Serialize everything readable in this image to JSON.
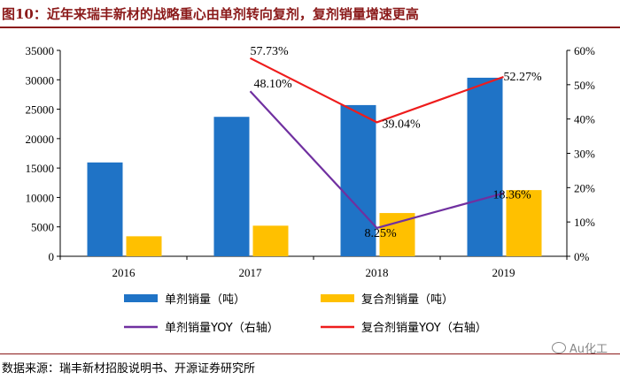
{
  "header": {
    "title": "图10：近年来瑞丰新材的战略重心由单剂转向复剂，复剂销量增速更高"
  },
  "footer": {
    "source": "数据来源：瑞丰新材招股说明书、开源证券研究所",
    "watermark": "Au化工"
  },
  "colors": {
    "single_bar": "#1f73c6",
    "compound_bar": "#ffc000",
    "single_yoy": "#7030a0",
    "compound_yoy": "#ee1c1c"
  },
  "chart_data": {
    "type": "bar",
    "categories": [
      "2016",
      "2017",
      "2018",
      "2019"
    ],
    "series": [
      {
        "name": "单剂销量（吨）",
        "kind": "bar",
        "axis": "left",
        "values": [
          15950,
          23700,
          25700,
          30350
        ]
      },
      {
        "name": "复合剂销量（吨）",
        "kind": "bar",
        "axis": "left",
        "values": [
          3400,
          5200,
          7350,
          11250
        ]
      },
      {
        "name": "单剂销量YOY（右轴）",
        "kind": "line",
        "axis": "right",
        "values": [
          null,
          48.1,
          8.25,
          18.36
        ],
        "labels": [
          "",
          "48.10%",
          "8.25%",
          "18.36%"
        ]
      },
      {
        "name": "复合剂销量YOY（右轴）",
        "kind": "line",
        "axis": "right",
        "values": [
          null,
          57.73,
          39.04,
          52.27
        ],
        "labels": [
          "",
          "57.73%",
          "39.04%",
          "52.27%"
        ]
      }
    ],
    "y_left": {
      "min": 0,
      "max": 35000,
      "ticks": [
        "0",
        "5000",
        "10000",
        "15000",
        "20000",
        "25000",
        "30000",
        "35000"
      ]
    },
    "y_right": {
      "min": 0,
      "max": 60,
      "ticks": [
        "0%",
        "10%",
        "20%",
        "30%",
        "40%",
        "50%",
        "60%"
      ]
    },
    "legend_position": "bottom"
  }
}
